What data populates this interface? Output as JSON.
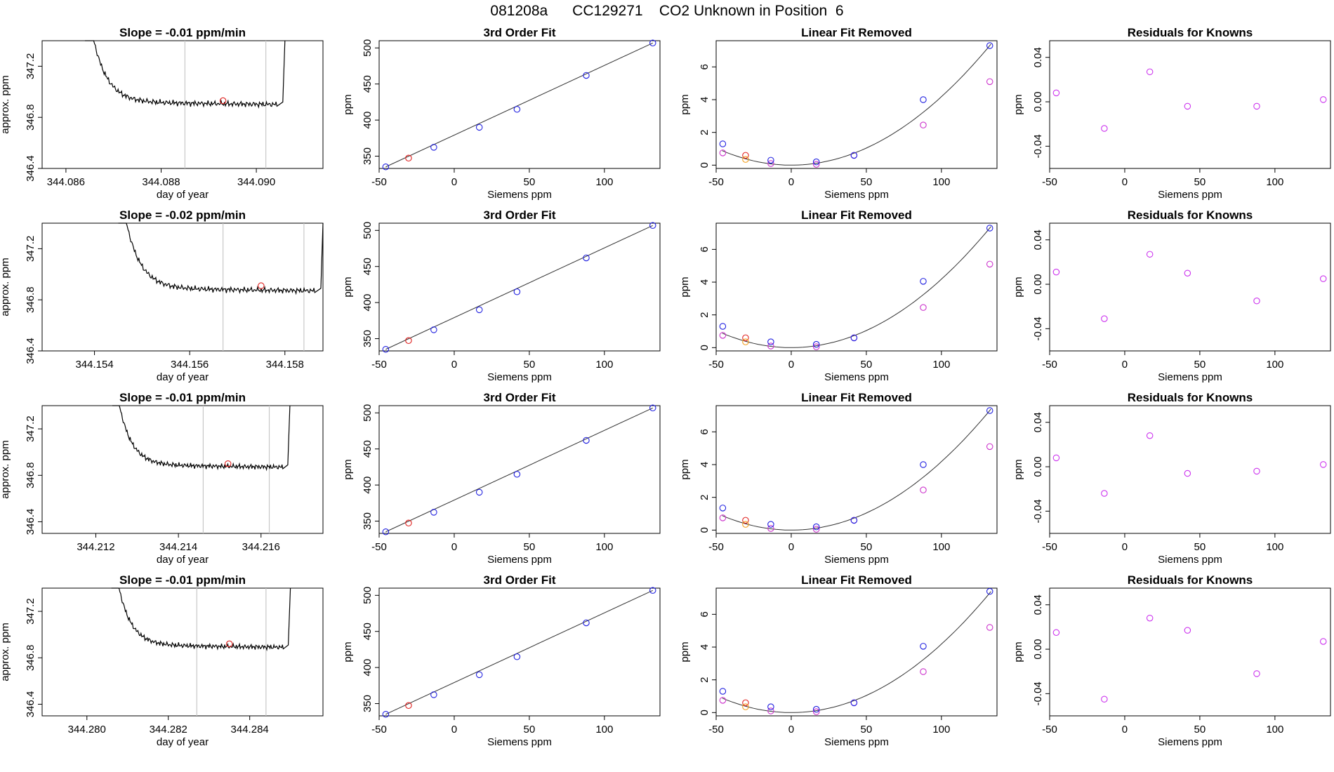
{
  "page_title": "081208a      CC129271    CO2 Unknown in Position  6",
  "colors": {
    "trace": "#000000",
    "fit_line": "#333333",
    "vline": "#c8c8c8",
    "unknown": "#e0201e",
    "known": "#2020e0",
    "raw": "#cc33cc",
    "residual": "#cc33ee",
    "orange": "#f4a020"
  },
  "chart_data": [
    {
      "type": "line",
      "title": "Slope =  -0.01  ppm/min",
      "xlabel": "day of year",
      "ylabel": "approx. ppm",
      "xlim": [
        344.0855,
        344.0914
      ],
      "ylim": [
        346.4,
        347.4
      ],
      "xticks": [
        344.086,
        344.088,
        344.09
      ],
      "xtick_labels": [
        "344.086",
        "344.088",
        "344.090"
      ],
      "yticks": [
        346.4,
        346.8,
        347.2
      ],
      "ytick_labels": [
        "346.4",
        "346.8",
        "347.2"
      ],
      "vlines": [
        344.0885,
        344.0902
      ],
      "red_point": [
        344.0893,
        346.93
      ],
      "trace_start": 344.0864,
      "trace_end": 344.0906,
      "trace_level": 346.92
    },
    {
      "type": "line",
      "title": "3rd Order Fit",
      "xlabel": "Siemens ppm",
      "ylabel": "ppm",
      "xlim": [
        -50,
        137
      ],
      "ylim": [
        333,
        510
      ],
      "xticks": [
        -50,
        0,
        50,
        100
      ],
      "xtick_labels": [
        "-50",
        "0",
        "50",
        "100"
      ],
      "yticks": [
        350,
        400,
        450,
        500
      ],
      "ytick_labels": [
        "350",
        "400",
        "450",
        "500"
      ],
      "points": [
        [
          -45.6,
          335.2
        ],
        [
          -13.6,
          362.3
        ],
        [
          16.7,
          390.0
        ],
        [
          41.8,
          414.9
        ],
        [
          87.9,
          461.9
        ],
        [
          132.2,
          506.8
        ]
      ],
      "red_point": [
        -30.4,
        347.3
      ]
    },
    {
      "type": "scatter",
      "title": "Linear Fit Removed",
      "xlabel": "Siemens ppm",
      "ylabel": "ppm",
      "xlim": [
        -50,
        137
      ],
      "ylim": [
        -0.2,
        7.6
      ],
      "xticks": [
        -50,
        0,
        50,
        100
      ],
      "xtick_labels": [
        "-50",
        "0",
        "50",
        "100"
      ],
      "yticks": [
        0,
        2,
        4,
        6
      ],
      "ytick_labels": [
        "0",
        "2",
        "4",
        "6"
      ],
      "blue_points": [
        [
          -45.6,
          1.3
        ],
        [
          -13.6,
          0.3
        ],
        [
          16.7,
          0.2
        ],
        [
          41.8,
          0.6
        ],
        [
          87.9,
          4.0
        ],
        [
          132.2,
          7.3
        ]
      ],
      "magenta_points": [
        [
          -45.6,
          0.75
        ],
        [
          -13.6,
          0.1
        ],
        [
          16.7,
          0.05
        ],
        [
          41.8,
          0.6
        ],
        [
          87.9,
          2.45
        ],
        [
          132.2,
          5.1
        ]
      ],
      "red_point": [
        -30.4,
        0.6
      ],
      "orange_point": [
        -30.4,
        0.35
      ]
    },
    {
      "type": "scatter",
      "title": "Residuals for Knowns",
      "xlabel": "Siemens ppm",
      "ylabel": "ppm",
      "xlim": [
        -50,
        137
      ],
      "ylim": [
        -0.06,
        0.055
      ],
      "xticks": [
        -50,
        0,
        50,
        100
      ],
      "xtick_labels": [
        "-50",
        "0",
        "50",
        "100"
      ],
      "yticks": [
        -0.04,
        0.0,
        0.04
      ],
      "ytick_labels": [
        "-0.04",
        "0.00",
        "0.04"
      ],
      "points": [
        [
          -45.6,
          0.008
        ],
        [
          -13.6,
          -0.024
        ],
        [
          16.7,
          0.027
        ],
        [
          41.8,
          -0.004
        ],
        [
          87.9,
          -0.004
        ],
        [
          132.2,
          0.002
        ]
      ]
    },
    {
      "type": "line",
      "title": "Slope =  -0.02  ppm/min",
      "xlabel": "day of year",
      "ylabel": "approx. ppm",
      "xlim": [
        344.1529,
        344.1588
      ],
      "ylim": [
        346.4,
        347.4
      ],
      "xticks": [
        344.154,
        344.156,
        344.158
      ],
      "xtick_labels": [
        "344.154",
        "344.156",
        "344.158"
      ],
      "yticks": [
        346.4,
        346.8,
        347.2
      ],
      "ytick_labels": [
        "346.4",
        "346.8",
        "347.2"
      ],
      "vlines": [
        344.1567,
        344.1584
      ],
      "red_point": [
        344.1575,
        346.91
      ],
      "trace_start": 344.1545,
      "trace_end": 344.1588,
      "trace_level": 346.89
    },
    {
      "type": "line",
      "title": "3rd Order Fit",
      "xlabel": "Siemens ppm",
      "ylabel": "ppm",
      "xlim": [
        -50,
        137
      ],
      "ylim": [
        333,
        510
      ],
      "xticks": [
        -50,
        0,
        50,
        100
      ],
      "xtick_labels": [
        "-50",
        "0",
        "50",
        "100"
      ],
      "yticks": [
        350,
        400,
        450,
        500
      ],
      "ytick_labels": [
        "350",
        "400",
        "450",
        "500"
      ],
      "points": [
        [
          -45.6,
          335.2
        ],
        [
          -13.6,
          362.3
        ],
        [
          16.7,
          390.0
        ],
        [
          41.8,
          414.9
        ],
        [
          87.9,
          461.9
        ],
        [
          132.2,
          506.8
        ]
      ],
      "red_point": [
        -30.4,
        347.3
      ]
    },
    {
      "type": "scatter",
      "title": "Linear Fit Removed",
      "xlabel": "Siemens ppm",
      "ylabel": "ppm",
      "xlim": [
        -50,
        137
      ],
      "ylim": [
        -0.2,
        7.6
      ],
      "xticks": [
        -50,
        0,
        50,
        100
      ],
      "xtick_labels": [
        "-50",
        "0",
        "50",
        "100"
      ],
      "yticks": [
        0,
        2,
        4,
        6
      ],
      "ytick_labels": [
        "0",
        "2",
        "4",
        "6"
      ],
      "blue_points": [
        [
          -45.6,
          1.3
        ],
        [
          -13.6,
          0.35
        ],
        [
          16.7,
          0.2
        ],
        [
          41.8,
          0.6
        ],
        [
          87.9,
          4.05
        ],
        [
          132.2,
          7.3
        ]
      ],
      "magenta_points": [
        [
          -45.6,
          0.75
        ],
        [
          -13.6,
          0.1
        ],
        [
          16.7,
          0.05
        ],
        [
          41.8,
          0.6
        ],
        [
          87.9,
          2.45
        ],
        [
          132.2,
          5.1
        ]
      ],
      "red_point": [
        -30.4,
        0.6
      ],
      "orange_point": [
        -30.4,
        0.35
      ]
    },
    {
      "type": "scatter",
      "title": "Residuals for Knowns",
      "xlabel": "Siemens ppm",
      "ylabel": "ppm",
      "xlim": [
        -50,
        137
      ],
      "ylim": [
        -0.06,
        0.055
      ],
      "xticks": [
        -50,
        0,
        50,
        100
      ],
      "xtick_labels": [
        "-50",
        "0",
        "50",
        "100"
      ],
      "yticks": [
        -0.04,
        0.0,
        0.04
      ],
      "ytick_labels": [
        "-0.04",
        "0.00",
        "0.04"
      ],
      "points": [
        [
          -45.6,
          0.011
        ],
        [
          -13.6,
          -0.031
        ],
        [
          16.7,
          0.027
        ],
        [
          41.8,
          0.01
        ],
        [
          87.9,
          -0.015
        ],
        [
          132.2,
          0.005
        ]
      ]
    },
    {
      "type": "line",
      "title": "Slope =  -0.01  ppm/min",
      "xlabel": "day of year",
      "ylabel": "approx. ppm",
      "xlim": [
        344.2107,
        344.2175
      ],
      "ylim": [
        346.3,
        347.4
      ],
      "xticks": [
        344.212,
        344.214,
        344.216
      ],
      "xtick_labels": [
        "344.212",
        "344.214",
        "344.216"
      ],
      "yticks": [
        346.4,
        346.8,
        347.2
      ],
      "ytick_labels": [
        "346.4",
        "346.8",
        "347.2"
      ],
      "vlines": [
        344.2146,
        344.2162
      ],
      "red_point": [
        344.2152,
        346.9
      ],
      "trace_start": 344.2124,
      "trace_end": 344.2167,
      "trace_level": 346.89
    },
    {
      "type": "line",
      "title": "3rd Order Fit",
      "xlabel": "Siemens ppm",
      "ylabel": "ppm",
      "xlim": [
        -50,
        137
      ],
      "ylim": [
        333,
        510
      ],
      "xticks": [
        -50,
        0,
        50,
        100
      ],
      "xtick_labels": [
        "-50",
        "0",
        "50",
        "100"
      ],
      "yticks": [
        350,
        400,
        450,
        500
      ],
      "ytick_labels": [
        "350",
        "400",
        "450",
        "500"
      ],
      "points": [
        [
          -45.6,
          335.2
        ],
        [
          -13.6,
          362.3
        ],
        [
          16.7,
          390.0
        ],
        [
          41.8,
          414.9
        ],
        [
          87.9,
          461.9
        ],
        [
          132.2,
          506.8
        ]
      ],
      "red_point": [
        -30.4,
        347.3
      ]
    },
    {
      "type": "scatter",
      "title": "Linear Fit Removed",
      "xlabel": "Siemens ppm",
      "ylabel": "ppm",
      "xlim": [
        -50,
        137
      ],
      "ylim": [
        -0.2,
        7.6
      ],
      "xticks": [
        -50,
        0,
        50,
        100
      ],
      "xtick_labels": [
        "-50",
        "0",
        "50",
        "100"
      ],
      "yticks": [
        0,
        2,
        4,
        6
      ],
      "ytick_labels": [
        "0",
        "2",
        "4",
        "6"
      ],
      "blue_points": [
        [
          -45.6,
          1.35
        ],
        [
          -13.6,
          0.35
        ],
        [
          16.7,
          0.2
        ],
        [
          41.8,
          0.6
        ],
        [
          87.9,
          4.0
        ],
        [
          132.2,
          7.3
        ]
      ],
      "magenta_points": [
        [
          -45.6,
          0.75
        ],
        [
          -13.6,
          0.1
        ],
        [
          16.7,
          0.05
        ],
        [
          41.8,
          0.6
        ],
        [
          87.9,
          2.45
        ],
        [
          132.2,
          5.1
        ]
      ],
      "red_point": [
        -30.4,
        0.6
      ],
      "orange_point": [
        -30.4,
        0.35
      ]
    },
    {
      "type": "scatter",
      "title": "Residuals for Knowns",
      "xlabel": "Siemens ppm",
      "ylabel": "ppm",
      "xlim": [
        -50,
        137
      ],
      "ylim": [
        -0.06,
        0.055
      ],
      "xticks": [
        -50,
        0,
        50,
        100
      ],
      "xtick_labels": [
        "-50",
        "0",
        "50",
        "100"
      ],
      "yticks": [
        -0.04,
        0.0,
        0.04
      ],
      "ytick_labels": [
        "-0.04",
        "0.00",
        "0.04"
      ],
      "points": [
        [
          -45.6,
          0.008
        ],
        [
          -13.6,
          -0.024
        ],
        [
          16.7,
          0.028
        ],
        [
          41.8,
          -0.006
        ],
        [
          87.9,
          -0.004
        ],
        [
          132.2,
          0.002
        ]
      ]
    },
    {
      "type": "line",
      "title": "Slope =  -0.01  ppm/min",
      "xlabel": "day of year",
      "ylabel": "approx. ppm",
      "xlim": [
        344.2789,
        344.2858
      ],
      "ylim": [
        346.3,
        347.4
      ],
      "xticks": [
        344.28,
        344.282,
        344.284
      ],
      "xtick_labels": [
        "344.280",
        "344.282",
        "344.284"
      ],
      "yticks": [
        346.4,
        346.8,
        347.2
      ],
      "ytick_labels": [
        "346.4",
        "346.8",
        "347.2"
      ],
      "vlines": [
        344.2827,
        344.2844
      ],
      "red_point": [
        344.2835,
        346.92
      ],
      "trace_start": 344.2806,
      "trace_end": 344.285,
      "trace_level": 346.91
    },
    {
      "type": "line",
      "title": "3rd Order Fit",
      "xlabel": "Siemens ppm",
      "ylabel": "ppm",
      "xlim": [
        -50,
        137
      ],
      "ylim": [
        333,
        510
      ],
      "xticks": [
        -50,
        0,
        50,
        100
      ],
      "xtick_labels": [
        "-50",
        "0",
        "50",
        "100"
      ],
      "yticks": [
        350,
        400,
        450,
        500
      ],
      "ytick_labels": [
        "350",
        "400",
        "450",
        "500"
      ],
      "points": [
        [
          -45.6,
          335.2
        ],
        [
          -13.6,
          362.3
        ],
        [
          16.7,
          390.0
        ],
        [
          41.8,
          414.9
        ],
        [
          87.9,
          461.9
        ],
        [
          132.2,
          506.8
        ]
      ],
      "red_point": [
        -30.4,
        347.3
      ]
    },
    {
      "type": "scatter",
      "title": "Linear Fit Removed",
      "xlabel": "Siemens ppm",
      "ylabel": "ppm",
      "xlim": [
        -50,
        137
      ],
      "ylim": [
        -0.2,
        7.6
      ],
      "xticks": [
        -50,
        0,
        50,
        100
      ],
      "xtick_labels": [
        "-50",
        "0",
        "50",
        "100"
      ],
      "yticks": [
        0,
        2,
        4,
        6
      ],
      "ytick_labels": [
        "0",
        "2",
        "4",
        "6"
      ],
      "blue_points": [
        [
          -45.6,
          1.3
        ],
        [
          -13.6,
          0.35
        ],
        [
          16.7,
          0.2
        ],
        [
          41.8,
          0.6
        ],
        [
          87.9,
          4.05
        ],
        [
          132.2,
          7.4
        ]
      ],
      "magenta_points": [
        [
          -45.6,
          0.75
        ],
        [
          -13.6,
          0.1
        ],
        [
          16.7,
          0.05
        ],
        [
          41.8,
          0.6
        ],
        [
          87.9,
          2.5
        ],
        [
          132.2,
          5.2
        ]
      ],
      "red_point": [
        -30.4,
        0.6
      ],
      "orange_point": [
        -30.4,
        0.35
      ]
    },
    {
      "type": "scatter",
      "title": "Residuals for Knowns",
      "xlabel": "Siemens ppm",
      "ylabel": "ppm",
      "xlim": [
        -50,
        137
      ],
      "ylim": [
        -0.06,
        0.055
      ],
      "xticks": [
        -50,
        0,
        50,
        100
      ],
      "xtick_labels": [
        "-50",
        "0",
        "50",
        "100"
      ],
      "yticks": [
        -0.04,
        0.0,
        0.04
      ],
      "ytick_labels": [
        "-0.04",
        "0.00",
        "0.04"
      ],
      "points": [
        [
          -45.6,
          0.015
        ],
        [
          -13.6,
          -0.045
        ],
        [
          16.7,
          0.028
        ],
        [
          41.8,
          0.017
        ],
        [
          87.9,
          -0.022
        ],
        [
          132.2,
          0.007
        ]
      ]
    }
  ]
}
